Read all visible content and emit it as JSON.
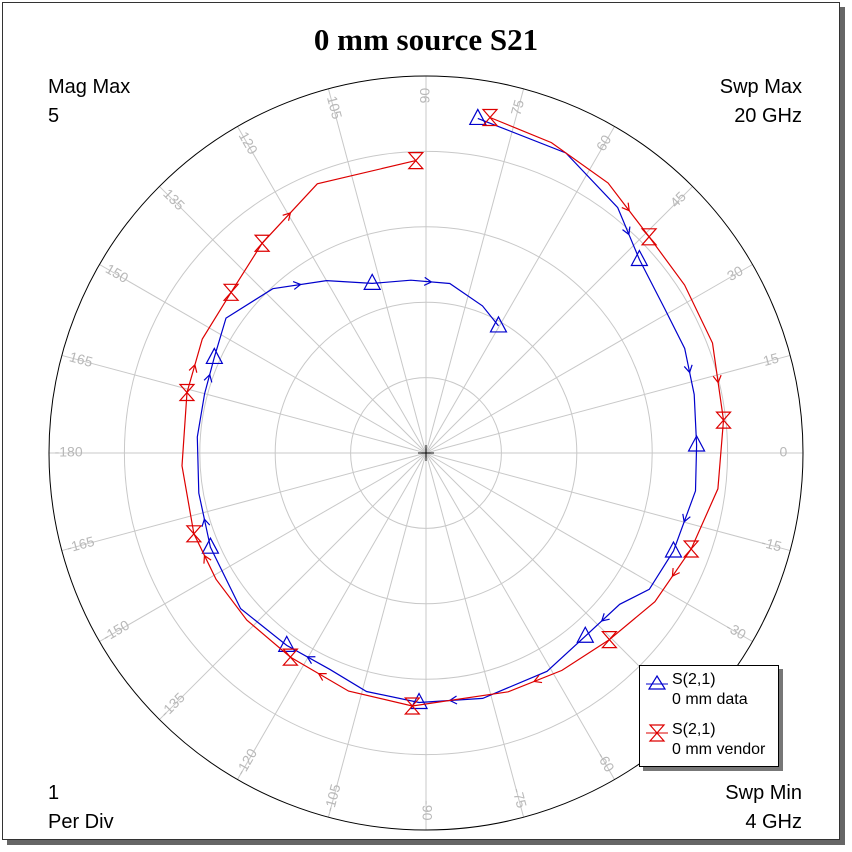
{
  "chart_data": {
    "type": "polar",
    "title": "0 mm source S21",
    "mag_max_label": "Mag Max",
    "mag_max_value": "5",
    "per_div_value": "1",
    "per_div_label": "Per Div",
    "swp_max_label": "Swp Max",
    "swp_max_value": "20  GHz",
    "swp_min_label": "Swp Min",
    "swp_min_value": "4  GHz",
    "r_max": 5,
    "r_divisions": 5,
    "angle_labels": [
      {
        "deg": 0,
        "text": "0"
      },
      {
        "deg": 15,
        "text": "15"
      },
      {
        "deg": 30,
        "text": "30"
      },
      {
        "deg": 45,
        "text": "45"
      },
      {
        "deg": 60,
        "text": "60"
      },
      {
        "deg": 75,
        "text": "75"
      },
      {
        "deg": 90,
        "text": "90"
      },
      {
        "deg": 105,
        "text": "105"
      },
      {
        "deg": 120,
        "text": "120"
      },
      {
        "deg": 135,
        "text": "135"
      },
      {
        "deg": 150,
        "text": "150"
      },
      {
        "deg": 165,
        "text": "165"
      },
      {
        "deg": 180,
        "text": "-180"
      },
      {
        "deg": -165,
        "text": "-165"
      },
      {
        "deg": -150,
        "text": "-150"
      },
      {
        "deg": -135,
        "text": "-135"
      },
      {
        "deg": -120,
        "text": "-120"
      },
      {
        "deg": -105,
        "text": "-105"
      },
      {
        "deg": -90,
        "text": "-90"
      },
      {
        "deg": -75,
        "text": "-75"
      },
      {
        "deg": -60,
        "text": "-60"
      },
      {
        "deg": -45,
        "text": "-45"
      },
      {
        "deg": -30,
        "text": "-30"
      },
      {
        "deg": -15,
        "text": "-15"
      }
    ],
    "series": [
      {
        "name": "S(2,1)",
        "desc": "0 mm data",
        "color": "#0000cc",
        "marker": "triangle",
        "points": [
          {
            "mag": 4.49,
            "ang": 81.2
          },
          {
            "mag": 4.39,
            "ang": 65.0
          },
          {
            "mag": 4.13,
            "ang": 52.0
          },
          {
            "mag": 3.82,
            "ang": 42.2
          },
          {
            "mag": 3.7,
            "ang": 31.2
          },
          {
            "mag": 3.7,
            "ang": 22.0
          },
          {
            "mag": 3.64,
            "ang": 12.3
          },
          {
            "mag": 3.59,
            "ang": 1.7
          },
          {
            "mag": 3.61,
            "ang": -8.0
          },
          {
            "mag": 3.53,
            "ang": -21.6
          },
          {
            "mag": 3.47,
            "ang": -31.4
          },
          {
            "mag": 3.26,
            "ang": -38.0
          },
          {
            "mag": 3.22,
            "ang": -49.0
          },
          {
            "mag": 3.31,
            "ang": -61.0
          },
          {
            "mag": 3.34,
            "ang": -77.0
          },
          {
            "mag": 3.31,
            "ang": -91.6
          },
          {
            "mag": 3.26,
            "ang": -104.0
          },
          {
            "mag": 3.14,
            "ang": -114.0
          },
          {
            "mag": 3.15,
            "ang": -125.9
          },
          {
            "mag": 3.21,
            "ang": -140.0
          },
          {
            "mag": 3.12,
            "ang": -156.4
          },
          {
            "mag": 3.06,
            "ang": -170.0
          },
          {
            "mag": 3.04,
            "ang": 176.0
          },
          {
            "mag": 3.04,
            "ang": 165.0
          },
          {
            "mag": 3.08,
            "ang": 155.7
          },
          {
            "mag": 3.2,
            "ang": 146.0
          },
          {
            "mag": 2.98,
            "ang": 133.0
          },
          {
            "mag": 2.64,
            "ang": 120.0
          },
          {
            "mag": 2.36,
            "ang": 107.6
          },
          {
            "mag": 2.3,
            "ang": 95.0
          },
          {
            "mag": 2.27,
            "ang": 82.0
          },
          {
            "mag": 2.09,
            "ang": 69.0
          },
          {
            "mag": 1.94,
            "ang": 60.3
          }
        ],
        "marker_points": [
          {
            "mag": 4.49,
            "ang": 81.2
          },
          {
            "mag": 3.82,
            "ang": 42.2
          },
          {
            "mag": 3.59,
            "ang": 1.7
          },
          {
            "mag": 3.53,
            "ang": -21.6
          },
          {
            "mag": 3.22,
            "ang": -49.0
          },
          {
            "mag": 3.31,
            "ang": -91.6
          },
          {
            "mag": 3.15,
            "ang": -125.9
          },
          {
            "mag": 3.12,
            "ang": -156.4
          },
          {
            "mag": 3.08,
            "ang": 155.7
          },
          {
            "mag": 2.36,
            "ang": 107.6
          },
          {
            "mag": 1.94,
            "ang": 60.3
          }
        ]
      },
      {
        "name": "S(2,1)",
        "desc": "0 mm vendor",
        "color": "#dd0000",
        "marker": "bowtie",
        "points": [
          {
            "mag": 4.53,
            "ang": 79.2
          },
          {
            "mag": 4.44,
            "ang": 68.0
          },
          {
            "mag": 4.32,
            "ang": 56.0
          },
          {
            "mag": 4.12,
            "ang": 44.1
          },
          {
            "mag": 4.09,
            "ang": 33.0
          },
          {
            "mag": 4.07,
            "ang": 21.0
          },
          {
            "mag": 3.97,
            "ang": 6.3
          },
          {
            "mag": 3.9,
            "ang": -7.0
          },
          {
            "mag": 3.74,
            "ang": -19.9
          },
          {
            "mag": 3.62,
            "ang": -33.0
          },
          {
            "mag": 3.47,
            "ang": -45.5
          },
          {
            "mag": 3.4,
            "ang": -58.0
          },
          {
            "mag": 3.35,
            "ang": -71.0
          },
          {
            "mag": 3.36,
            "ang": -93.1
          },
          {
            "mag": 3.32,
            "ang": -108.0
          },
          {
            "mag": 3.25,
            "ang": -123.6
          },
          {
            "mag": 3.25,
            "ang": -137.0
          },
          {
            "mag": 3.25,
            "ang": -149.0
          },
          {
            "mag": 3.26,
            "ang": -160.8
          },
          {
            "mag": 3.24,
            "ang": -177.0
          },
          {
            "mag": 3.27,
            "ang": 165.8
          },
          {
            "mag": 3.33,
            "ang": 153.0
          },
          {
            "mag": 3.35,
            "ang": 140.5
          },
          {
            "mag": 3.53,
            "ang": 128.0
          },
          {
            "mag": 3.85,
            "ang": 112.0
          },
          {
            "mag": 3.88,
            "ang": 92.0
          }
        ],
        "marker_points": [
          {
            "mag": 4.53,
            "ang": 79.2
          },
          {
            "mag": 4.12,
            "ang": 44.1
          },
          {
            "mag": 3.97,
            "ang": 6.3
          },
          {
            "mag": 3.74,
            "ang": -19.9
          },
          {
            "mag": 3.47,
            "ang": -45.5
          },
          {
            "mag": 3.36,
            "ang": -93.1
          },
          {
            "mag": 3.25,
            "ang": -123.6
          },
          {
            "mag": 3.26,
            "ang": -160.8
          },
          {
            "mag": 3.27,
            "ang": 165.8
          },
          {
            "mag": 3.35,
            "ang": 140.5
          },
          {
            "mag": 3.53,
            "ang": 128.0
          },
          {
            "mag": 3.88,
            "ang": 92.0
          }
        ]
      }
    ],
    "legend_position": "bottom-right"
  }
}
